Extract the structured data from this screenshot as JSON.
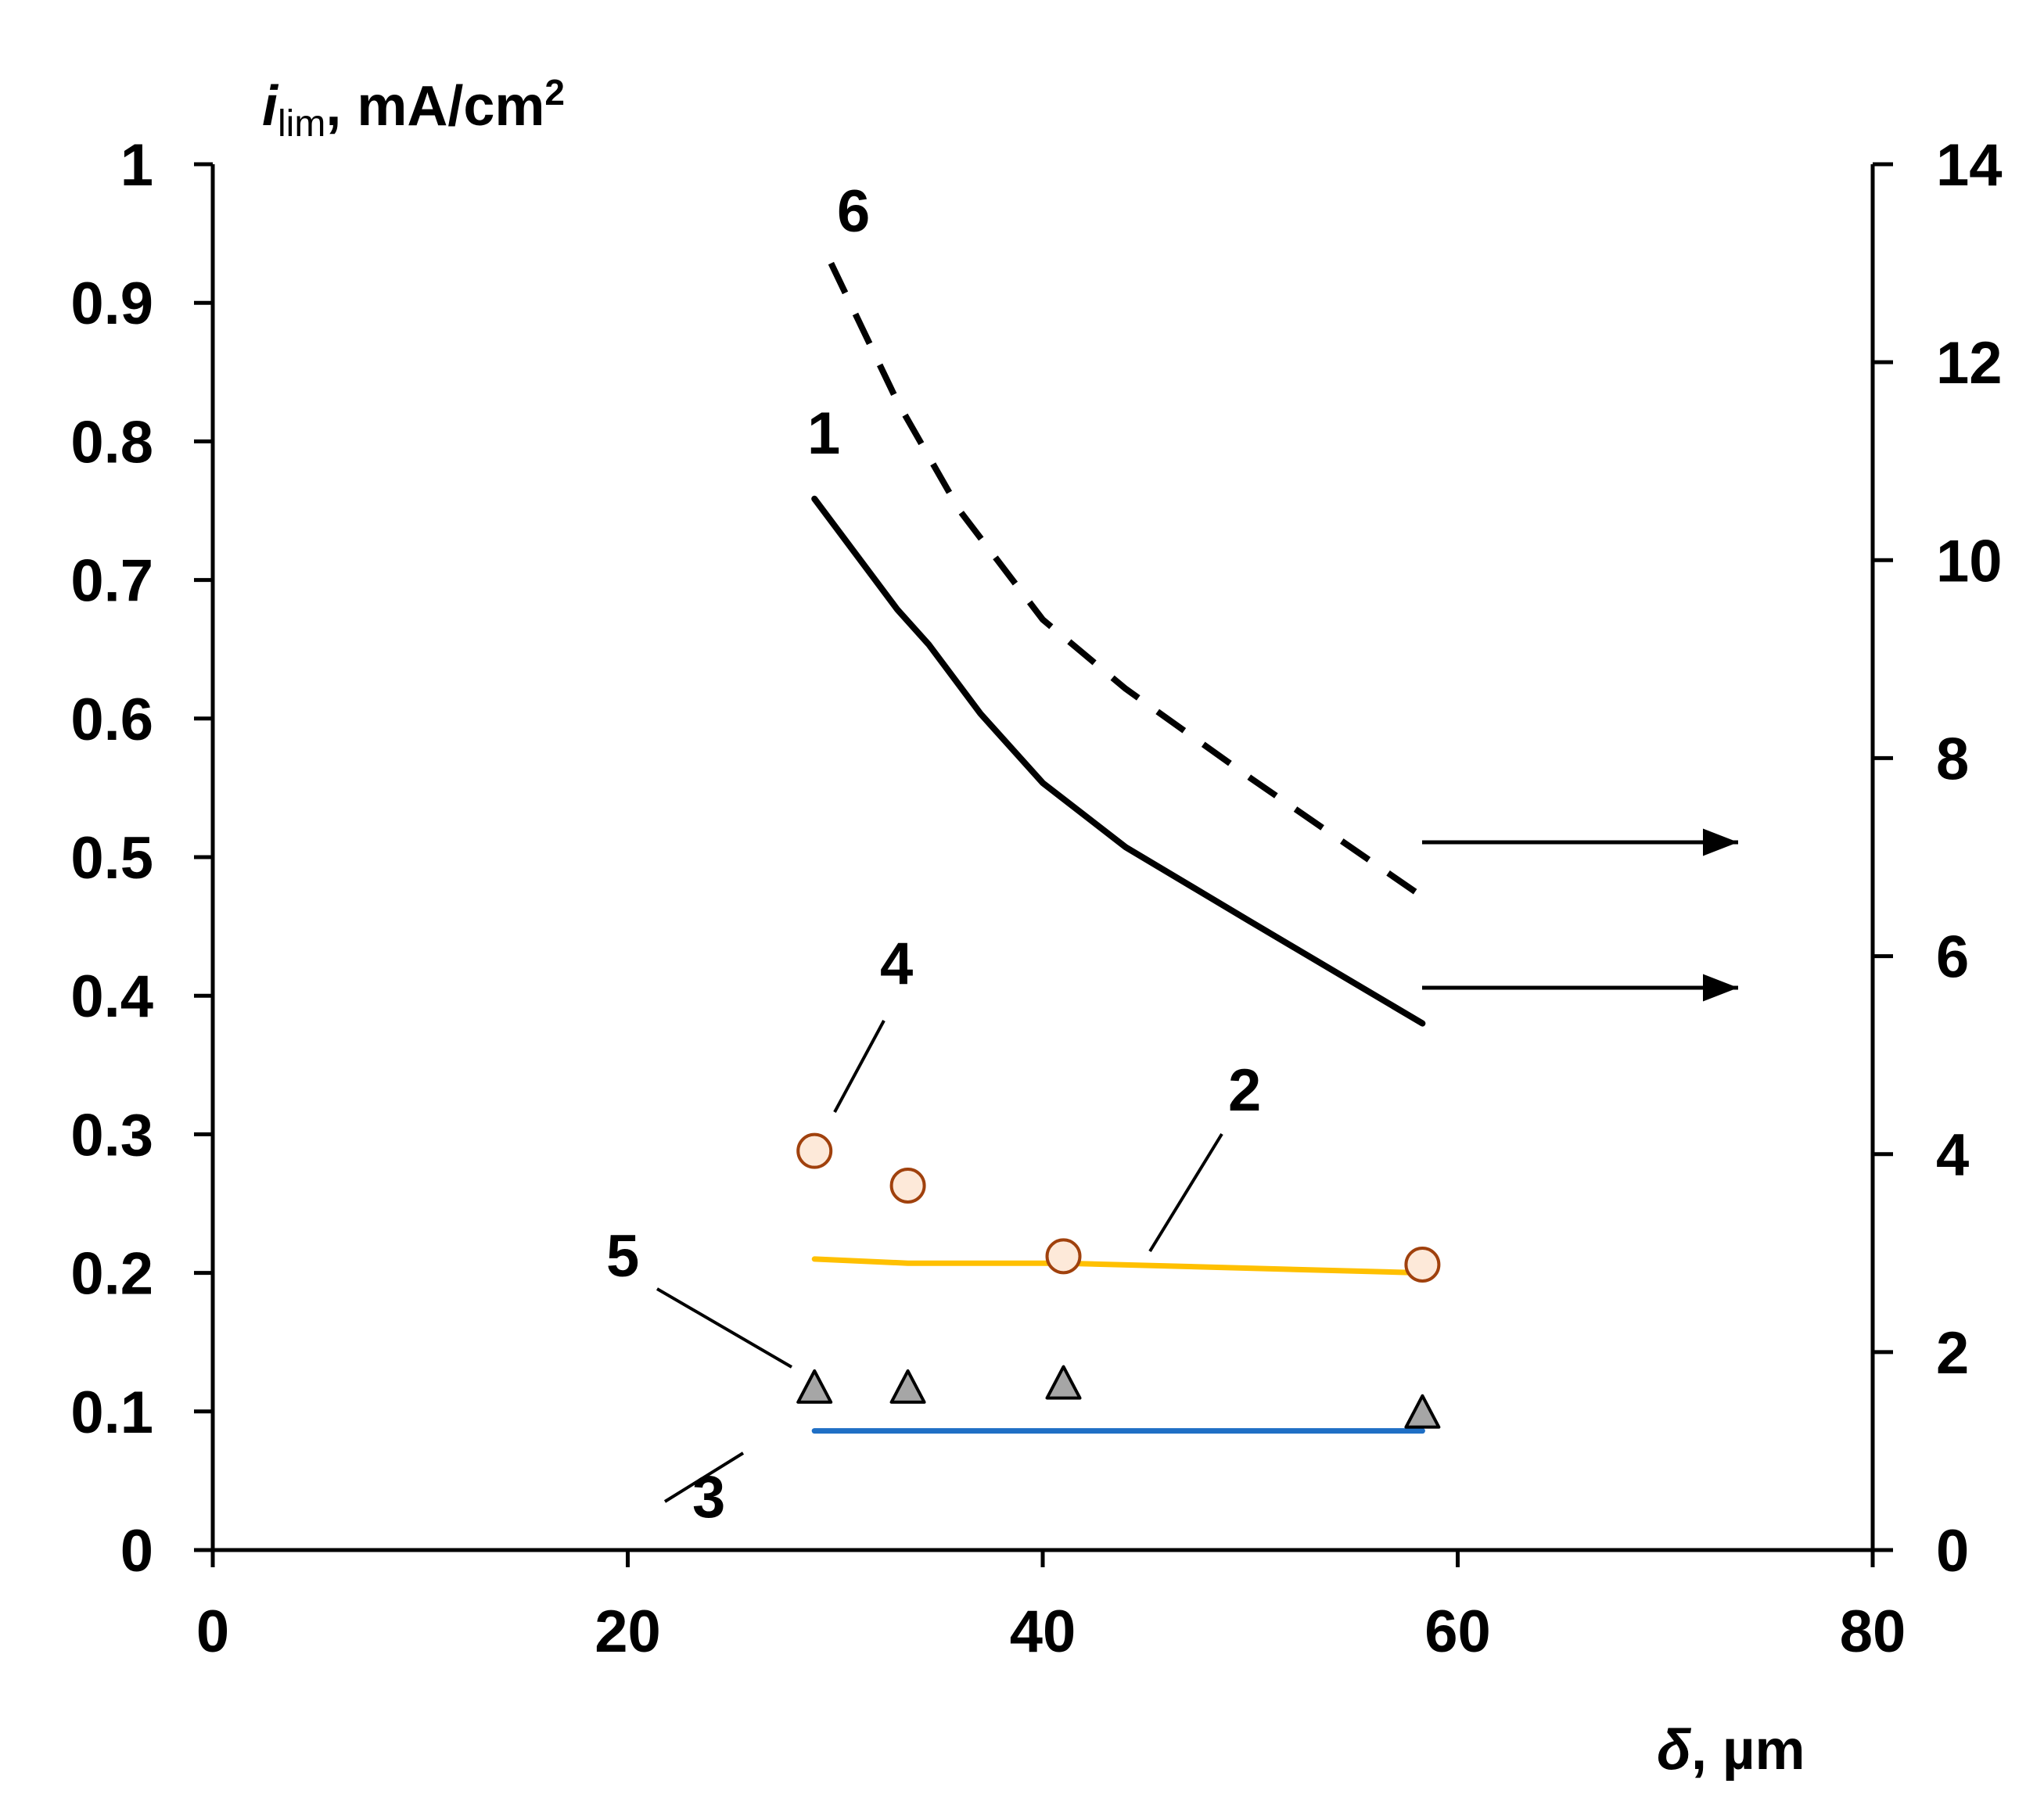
{
  "chart_data": {
    "type": "line",
    "title": "",
    "xlabel": {
      "symbol": "δ",
      "rest": ", µm"
    },
    "ylabel": {
      "symbol": "i",
      "sub": "lim",
      "rest": ", mA/cm",
      "sup": "2"
    },
    "xlim": [
      0,
      80
    ],
    "ylim_left": [
      0,
      1
    ],
    "ylim_right": [
      0,
      14
    ],
    "x_ticks": [
      "0",
      "20",
      "40",
      "60",
      "80"
    ],
    "y_left_ticks": [
      "0",
      "0.1",
      "0.2",
      "0.3",
      "0.4",
      "0.5",
      "0.6",
      "0.7",
      "0.8",
      "0.9",
      "1"
    ],
    "y_right_ticks": [
      "0",
      "2",
      "4",
      "6",
      "8",
      "10",
      "12",
      "14"
    ],
    "grid": false,
    "series": [
      {
        "label": "1",
        "axis": "right",
        "style": "solid",
        "color": "#000000",
        "x": [
          29,
          33,
          34.5,
          37,
          40,
          44,
          50,
          58.3
        ],
        "y": [
          10.62,
          9.5,
          9.15,
          8.45,
          7.75,
          7.1,
          6.35,
          5.32
        ]
      },
      {
        "label": "6",
        "axis": "right",
        "style": "dashed",
        "color": "#000000",
        "x": [
          29.8,
          33,
          36,
          40,
          44,
          50,
          58.3
        ],
        "y": [
          13.0,
          11.6,
          10.5,
          9.4,
          8.7,
          7.8,
          6.6
        ]
      },
      {
        "label": "2",
        "axis": "left",
        "style": "solid",
        "color": "#ffc000",
        "x": [
          29,
          33.5,
          41,
          58.3
        ],
        "y": [
          0.21,
          0.207,
          0.207,
          0.2
        ]
      },
      {
        "label": "3",
        "axis": "left",
        "style": "solid",
        "color": "#1f6fc5",
        "x": [
          29,
          58.3
        ],
        "y": [
          0.086,
          0.086
        ]
      },
      {
        "label": "4",
        "axis": "left",
        "style": "marker-circle",
        "color": "#fde9d9",
        "edge": "#a0410d",
        "x": [
          29,
          33.5,
          41,
          58.3
        ],
        "y": [
          0.288,
          0.263,
          0.212,
          0.206
        ]
      },
      {
        "label": "5",
        "axis": "left",
        "style": "marker-triangle",
        "color": "#a6a6a6",
        "edge": "#000000",
        "x": [
          29,
          33.5,
          41,
          58.3
        ],
        "y": [
          0.118,
          0.118,
          0.121,
          0.1
        ]
      }
    ],
    "annotations": [
      {
        "text": "1",
        "target": "series 1"
      },
      {
        "text": "2",
        "target": "series 2"
      },
      {
        "text": "3",
        "target": "series 3"
      },
      {
        "text": "4",
        "target": "series 4"
      },
      {
        "text": "5",
        "target": "series 5"
      },
      {
        "text": "6",
        "target": "series 6"
      },
      {
        "text": "arrow",
        "meaning": "curves 1 and 6 refer to right axis"
      }
    ]
  }
}
